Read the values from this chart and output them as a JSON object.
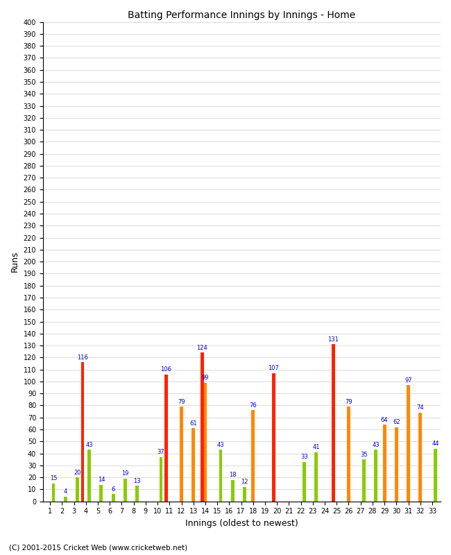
{
  "title": "Batting Performance Innings by Innings - Home",
  "xlabel": "Innings (oldest to newest)",
  "ylabel": "Runs",
  "ylim": [
    0,
    400
  ],
  "categories": [
    1,
    2,
    3,
    4,
    5,
    6,
    7,
    8,
    9,
    10,
    11,
    12,
    13,
    14,
    15,
    16,
    17,
    18,
    19,
    20,
    21,
    22,
    23,
    24,
    25,
    26,
    27,
    28,
    29,
    30,
    31,
    32,
    33
  ],
  "red_bars": [
    0,
    0,
    0,
    116,
    0,
    0,
    0,
    0,
    0,
    0,
    106,
    0,
    0,
    124,
    0,
    0,
    0,
    0,
    0,
    107,
    0,
    0,
    0,
    0,
    131,
    0,
    0,
    0,
    0,
    0,
    0,
    0,
    0
  ],
  "orange_bars": [
    0,
    0,
    0,
    0,
    0,
    0,
    0,
    0,
    0,
    0,
    0,
    79,
    61,
    99,
    0,
    0,
    0,
    76,
    0,
    0,
    0,
    0,
    0,
    0,
    0,
    79,
    0,
    0,
    64,
    62,
    97,
    74,
    0
  ],
  "green_bars": [
    15,
    4,
    20,
    43,
    14,
    6,
    19,
    13,
    0,
    37,
    0,
    0,
    0,
    0,
    43,
    18,
    12,
    0,
    0,
    0,
    0,
    33,
    41,
    0,
    0,
    0,
    35,
    43,
    0,
    0,
    0,
    0,
    44
  ],
  "red_color": "#ff2200",
  "orange_color": "#ff8800",
  "green_color": "#88cc00",
  "bg_color": "#ffffff",
  "grid_color": "#cccccc",
  "label_color": "#0000cc",
  "footer": "(C) 2001-2015 Cricket Web (www.cricketweb.net)"
}
